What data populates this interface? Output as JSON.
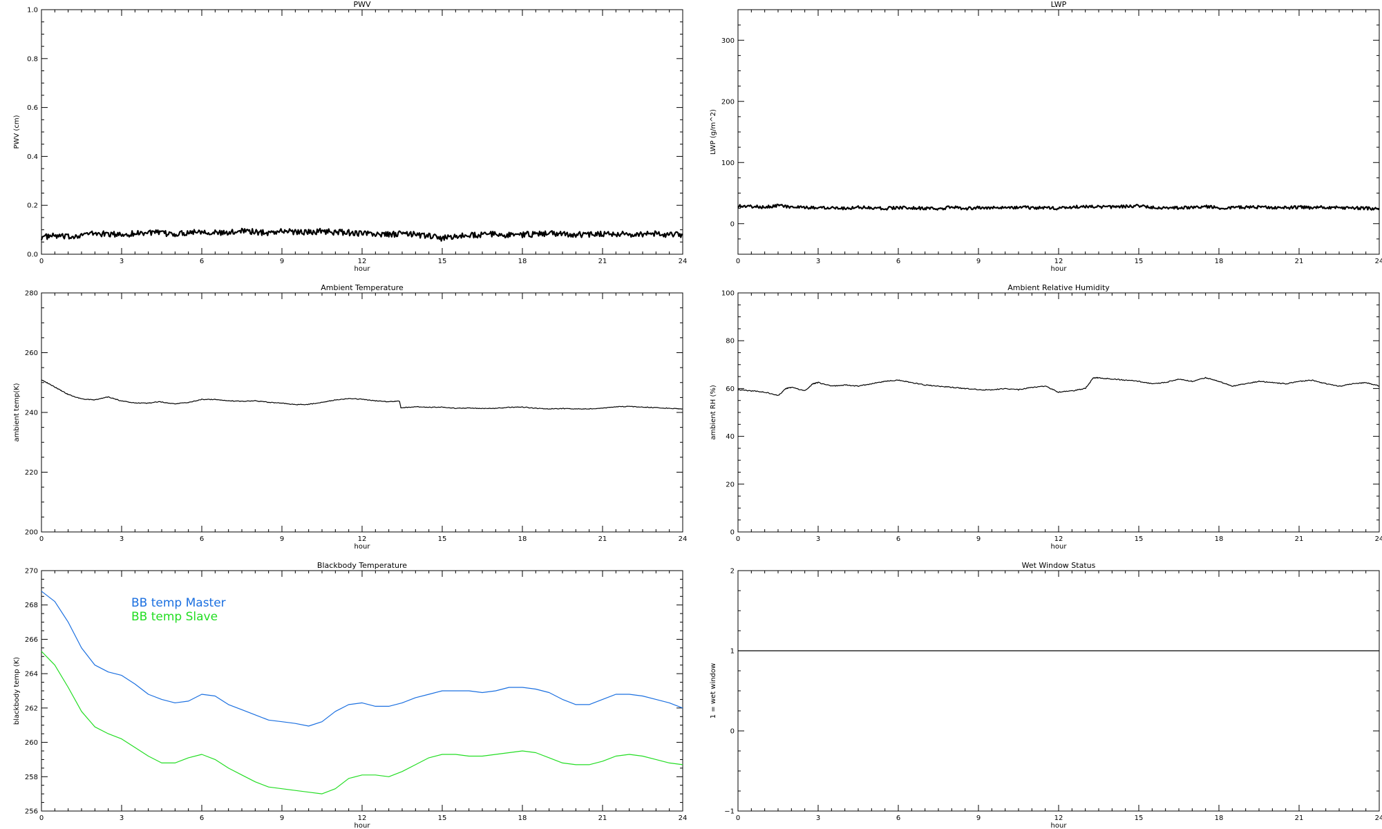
{
  "chart_data": [
    {
      "id": "pwv",
      "type": "line",
      "title": "PWV",
      "xlabel": "hour",
      "ylabel": "PWV (cm)",
      "xlim": [
        0,
        24
      ],
      "ylim": [
        0.0,
        1.0
      ],
      "xticks": [
        0,
        3,
        6,
        9,
        12,
        15,
        18,
        21,
        24
      ],
      "yticks": [
        0.0,
        0.2,
        0.4,
        0.6,
        0.8,
        1.0
      ],
      "ytick_labels": [
        "0.0",
        "0.2",
        "0.4",
        "0.6",
        "0.8",
        "1.0"
      ],
      "series": [
        {
          "color": "#000000",
          "band": 0.012,
          "x": [
            0,
            0.5,
            1,
            1.5,
            2,
            2.5,
            3,
            3.5,
            4,
            4.5,
            5,
            5.5,
            6,
            6.5,
            7,
            7.5,
            8,
            8.5,
            9,
            9.5,
            10,
            10.5,
            11,
            11.5,
            12,
            12.5,
            13,
            13.5,
            14,
            14.5,
            15,
            15.5,
            16,
            16.5,
            17,
            17.5,
            18,
            18.5,
            19,
            19.5,
            20,
            20.5,
            21,
            21.5,
            22,
            22.5,
            23,
            23.5,
            24
          ],
          "y": [
            0.07,
            0.075,
            0.07,
            0.08,
            0.085,
            0.082,
            0.08,
            0.085,
            0.09,
            0.085,
            0.082,
            0.09,
            0.095,
            0.088,
            0.085,
            0.1,
            0.09,
            0.088,
            0.095,
            0.092,
            0.09,
            0.095,
            0.09,
            0.088,
            0.085,
            0.082,
            0.08,
            0.085,
            0.08,
            0.075,
            0.065,
            0.072,
            0.078,
            0.08,
            0.082,
            0.078,
            0.08,
            0.082,
            0.085,
            0.083,
            0.08,
            0.082,
            0.085,
            0.083,
            0.08,
            0.082,
            0.085,
            0.08,
            0.078
          ]
        }
      ]
    },
    {
      "id": "lwp",
      "type": "line",
      "title": "LWP",
      "xlabel": "hour",
      "ylabel": "LWP (g/m^2)",
      "xlim": [
        0,
        24
      ],
      "ylim": [
        -50,
        350
      ],
      "xticks": [
        0,
        3,
        6,
        9,
        12,
        15,
        18,
        21,
        24
      ],
      "yticks": [
        0,
        100,
        200,
        300
      ],
      "ytick_labels": [
        "0",
        "100",
        "200",
        "300"
      ],
      "series": [
        {
          "color": "#000000",
          "band": 2.5,
          "x": [
            0,
            0.5,
            1,
            1.5,
            2,
            2.5,
            3,
            3.5,
            4,
            4.5,
            5,
            5.5,
            6,
            6.5,
            7,
            7.5,
            8,
            8.5,
            9,
            9.5,
            10,
            10.5,
            11,
            11.5,
            12,
            12.5,
            13,
            13.5,
            14,
            14.5,
            15,
            15.5,
            16,
            16.5,
            17,
            17.5,
            18,
            18.5,
            19,
            19.5,
            20,
            20.5,
            21,
            21.5,
            22,
            22.5,
            23,
            23.5,
            24
          ],
          "y": [
            29,
            28,
            27,
            30,
            27,
            26,
            26,
            27,
            25,
            27,
            26,
            25,
            26,
            26,
            25,
            24,
            27,
            25,
            26,
            26,
            26,
            27,
            26,
            26,
            25,
            27,
            28,
            27,
            27,
            28,
            29,
            27,
            26,
            26,
            27,
            28,
            26,
            26,
            27,
            27,
            26,
            26,
            27,
            26,
            27,
            26,
            26,
            25,
            25
          ]
        }
      ]
    },
    {
      "id": "ambient_temp",
      "type": "line",
      "title": "Ambient Temperature",
      "xlabel": "hour",
      "ylabel": "ambient temp(K)",
      "xlim": [
        0,
        24
      ],
      "ylim": [
        200,
        280
      ],
      "xticks": [
        0,
        3,
        6,
        9,
        12,
        15,
        18,
        21,
        24
      ],
      "yticks": [
        200,
        220,
        240,
        260,
        280
      ],
      "ytick_labels": [
        "200",
        "220",
        "240",
        "260",
        "280"
      ],
      "series": [
        {
          "color": "#000000",
          "band": 0.12,
          "x": [
            0,
            0.3,
            0.7,
            1.0,
            1.5,
            2.0,
            2.5,
            3.0,
            3.5,
            4.0,
            4.4,
            5.0,
            5.5,
            6.0,
            6.5,
            7.0,
            7.5,
            8.0,
            8.5,
            9.0,
            9.5,
            10.0,
            10.5,
            11.0,
            11.5,
            12.0,
            12.5,
            13.0,
            13.4,
            13.45,
            14.0,
            14.5,
            15.0,
            15.5,
            16.0,
            16.5,
            17.0,
            17.5,
            18.0,
            18.5,
            19.0,
            19.5,
            20.0,
            20.5,
            21.0,
            21.5,
            22.0,
            22.5,
            23.0,
            23.5,
            24.0
          ],
          "y": [
            251,
            249.5,
            247.5,
            246,
            244.5,
            244.2,
            245.2,
            243.8,
            243.2,
            243.1,
            243.6,
            242.9,
            243.3,
            244.4,
            244.3,
            243.9,
            243.7,
            243.9,
            243.4,
            243.1,
            242.6,
            242.7,
            243.4,
            244.2,
            244.7,
            244.4,
            243.9,
            243.6,
            243.8,
            241.6,
            241.9,
            241.7,
            241.8,
            241.4,
            241.5,
            241.3,
            241.4,
            241.7,
            241.8,
            241.4,
            241.2,
            241.3,
            241.2,
            241.2,
            241.4,
            241.9,
            242.0,
            241.8,
            241.6,
            241.4,
            241.2
          ]
        }
      ]
    },
    {
      "id": "ambient_rh",
      "type": "line",
      "title": "Ambient Relative Humidity",
      "xlabel": "hour",
      "ylabel": "ambient RH (%)",
      "xlim": [
        0,
        24
      ],
      "ylim": [
        0,
        100
      ],
      "xticks": [
        0,
        3,
        6,
        9,
        12,
        15,
        18,
        21,
        24
      ],
      "yticks": [
        0,
        20,
        40,
        60,
        80,
        100
      ],
      "ytick_labels": [
        "0",
        "20",
        "40",
        "60",
        "80",
        "100"
      ],
      "series": [
        {
          "color": "#000000",
          "band": 0.2,
          "x": [
            0,
            0.5,
            1.0,
            1.5,
            1.8,
            2.0,
            2.5,
            2.8,
            3.0,
            3.5,
            4.0,
            4.5,
            5.0,
            5.5,
            6.0,
            6.5,
            7.0,
            7.5,
            8.0,
            8.5,
            9.0,
            9.5,
            10.0,
            10.5,
            11.0,
            11.5,
            12.0,
            12.5,
            13.0,
            13.3,
            13.5,
            14.0,
            14.5,
            15.0,
            15.5,
            16.0,
            16.5,
            17.0,
            17.5,
            18.0,
            18.5,
            19.0,
            19.5,
            20.0,
            20.5,
            21.0,
            21.5,
            22.0,
            22.5,
            23.0,
            23.5,
            24.0
          ],
          "y": [
            59.5,
            59,
            58.5,
            57,
            60,
            60.5,
            59,
            62,
            62.5,
            61,
            61.5,
            61,
            62,
            63,
            63.5,
            62.5,
            61.5,
            61,
            60.5,
            60,
            59.5,
            59.5,
            60,
            59.5,
            60.5,
            61,
            58.5,
            59,
            60,
            64.5,
            64.5,
            64,
            63.5,
            63,
            62,
            62.5,
            64,
            63,
            64.5,
            63,
            61,
            62,
            63,
            62.5,
            62,
            63,
            63.5,
            62,
            61,
            62,
            62.5,
            61
          ]
        }
      ]
    },
    {
      "id": "bb_temp",
      "type": "line",
      "title": "Blackbody Temperature",
      "xlabel": "hour",
      "ylabel": "blackbody temp (K)",
      "xlim": [
        0,
        24
      ],
      "ylim": [
        256,
        270
      ],
      "xticks": [
        0,
        3,
        6,
        9,
        12,
        15,
        18,
        21,
        24
      ],
      "yticks": [
        256,
        258,
        260,
        262,
        264,
        266,
        268,
        270
      ],
      "ytick_labels": [
        "256",
        "258",
        "260",
        "262",
        "264",
        "266",
        "268",
        "270"
      ],
      "series": [
        {
          "name": "BB temp Master",
          "color": "#1a6fe0",
          "band": 0,
          "x": [
            0,
            0.5,
            1.0,
            1.5,
            2.0,
            2.5,
            3.0,
            3.5,
            4.0,
            4.5,
            5.0,
            5.5,
            6.0,
            6.5,
            7.0,
            7.5,
            8.0,
            8.5,
            9.0,
            9.5,
            10.0,
            10.5,
            11.0,
            11.5,
            12.0,
            12.5,
            13.0,
            13.5,
            14.0,
            14.5,
            15.0,
            15.5,
            16.0,
            16.5,
            17.0,
            17.5,
            18.0,
            18.5,
            19.0,
            19.5,
            20.0,
            20.5,
            21.0,
            21.5,
            22.0,
            22.5,
            23.0,
            23.5,
            24.0
          ],
          "y": [
            268.8,
            268.2,
            267.0,
            265.5,
            264.5,
            264.1,
            263.9,
            263.4,
            262.8,
            262.5,
            262.3,
            262.4,
            262.8,
            262.7,
            262.2,
            261.9,
            261.6,
            261.3,
            261.2,
            261.1,
            260.95,
            261.2,
            261.8,
            262.2,
            262.3,
            262.1,
            262.1,
            262.3,
            262.6,
            262.8,
            263.0,
            263.0,
            263.0,
            262.9,
            263.0,
            263.2,
            263.2,
            263.1,
            262.9,
            262.5,
            262.2,
            262.2,
            262.5,
            262.8,
            262.8,
            262.7,
            262.5,
            262.3,
            262.0
          ]
        },
        {
          "name": "BB temp Slave",
          "color": "#22dd22",
          "band": 0,
          "x": [
            0,
            0.5,
            1.0,
            1.5,
            2.0,
            2.5,
            3.0,
            3.5,
            4.0,
            4.5,
            5.0,
            5.5,
            6.0,
            6.5,
            7.0,
            7.5,
            8.0,
            8.5,
            9.0,
            9.5,
            10.0,
            10.5,
            11.0,
            11.5,
            12.0,
            12.5,
            13.0,
            13.5,
            14.0,
            14.5,
            15.0,
            15.5,
            16.0,
            16.5,
            17.0,
            17.5,
            18.0,
            18.5,
            19.0,
            19.5,
            20.0,
            20.5,
            21.0,
            21.5,
            22.0,
            22.5,
            23.0,
            23.5,
            24.0
          ],
          "y": [
            265.3,
            264.5,
            263.2,
            261.8,
            260.9,
            260.5,
            260.2,
            259.7,
            259.2,
            258.8,
            258.8,
            259.1,
            259.3,
            259.0,
            258.5,
            258.1,
            257.7,
            257.4,
            257.3,
            257.2,
            257.1,
            257.0,
            257.3,
            257.9,
            258.1,
            258.1,
            258.0,
            258.3,
            258.7,
            259.1,
            259.3,
            259.3,
            259.2,
            259.2,
            259.3,
            259.4,
            259.5,
            259.4,
            259.1,
            258.8,
            258.7,
            258.7,
            258.9,
            259.2,
            259.3,
            259.2,
            259.0,
            258.8,
            258.7
          ]
        }
      ]
    },
    {
      "id": "wet_window",
      "type": "line",
      "title": "Wet Window Status",
      "xlabel": "hour",
      "ylabel": "1 = wet window",
      "xlim": [
        0,
        24
      ],
      "ylim": [
        -1,
        2
      ],
      "xticks": [
        0,
        3,
        6,
        9,
        12,
        15,
        18,
        21,
        24
      ],
      "yticks": [
        -1,
        0,
        1,
        2
      ],
      "ytick_labels": [
        "−1",
        "0",
        "1",
        "2"
      ],
      "series": [
        {
          "color": "#000000",
          "band": 0,
          "x": [
            0,
            24
          ],
          "y": [
            1,
            1
          ]
        }
      ]
    }
  ]
}
